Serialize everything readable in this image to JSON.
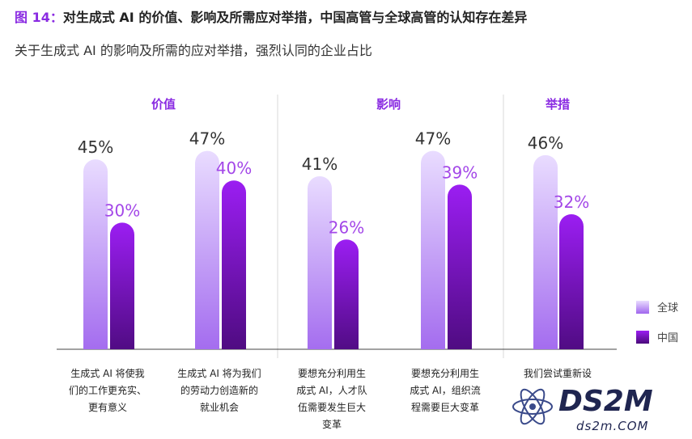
{
  "header": {
    "figure_label": "图 14：",
    "title": "对生成式 AI 的价值、影响及所需应对举措，中国高管与全球高管的认知存在差异",
    "subtitle": "关于生成式 AI 的影响及所需的应对举措，强烈认同的企业占比"
  },
  "watermark": {
    "main": "DS2M",
    "url": "ds2m.COM"
  },
  "colors": {
    "global_top": "#e9dcff",
    "global_bottom": "#a066ee",
    "china_top": "#9b1ef2",
    "china_bottom": "#4a0a7a",
    "group_label": "#8a2be2",
    "china_value": "#a347e8"
  },
  "chart_data": {
    "type": "bar",
    "groups": [
      {
        "label": "价值",
        "categories": [
          0,
          1
        ]
      },
      {
        "label": "影响",
        "categories": [
          2,
          3
        ]
      },
      {
        "label": "举措",
        "categories": [
          4
        ]
      }
    ],
    "categories": [
      [
        "生成式 AI 将使我",
        "们的工作更充实、",
        "更有意义"
      ],
      [
        "生成式 AI 将为我们",
        "的劳动力创造新的",
        "就业机会"
      ],
      [
        "要想充分利用生",
        "成式 AI，人才队",
        "伍需要发生巨大",
        "变革"
      ],
      [
        "要想充分利用生",
        "成式 AI，组织流",
        "程需要巨大变革"
      ],
      [
        "我们尝试重新设"
      ]
    ],
    "series": [
      {
        "name": "全球",
        "values": [
          45,
          47,
          41,
          47,
          46
        ],
        "labels": [
          "45%",
          "47%",
          "41%",
          "47%",
          "46%"
        ]
      },
      {
        "name": "中国",
        "values": [
          30,
          40,
          26,
          39,
          32
        ],
        "labels": [
          "30%",
          "40%",
          "26%",
          "39%",
          "32%"
        ]
      }
    ],
    "unit": "%",
    "legend": "right"
  }
}
